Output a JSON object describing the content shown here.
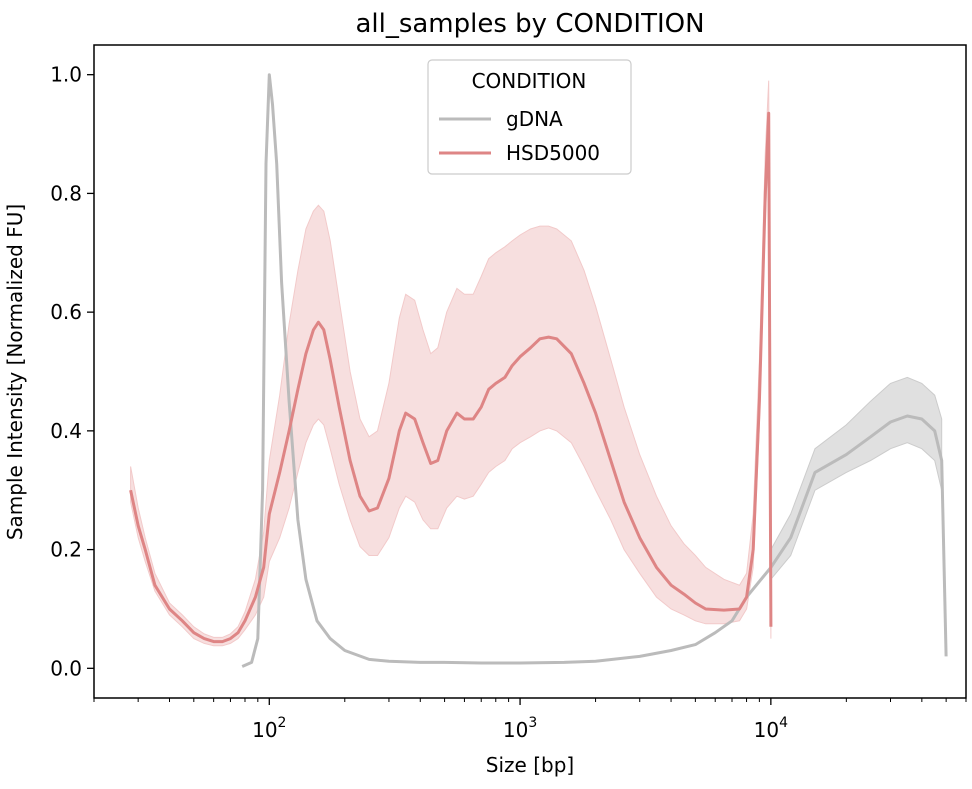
{
  "chart_data": {
    "type": "line",
    "title": "all_samples by CONDITION",
    "xlabel": "Size [bp]",
    "ylabel": "Sample Intensity [Normalized FU]",
    "x_scale": "log",
    "xlim": [
      20,
      60000
    ],
    "ylim": [
      -0.05,
      1.05
    ],
    "x_ticks": [
      {
        "value": 100,
        "base": "10",
        "exp": "2"
      },
      {
        "value": 1000,
        "base": "10",
        "exp": "3"
      },
      {
        "value": 10000,
        "base": "10",
        "exp": "4"
      }
    ],
    "y_ticks": [
      {
        "value": 0.0,
        "label": "0.0"
      },
      {
        "value": 0.2,
        "label": "0.2"
      },
      {
        "value": 0.4,
        "label": "0.4"
      },
      {
        "value": 0.6,
        "label": "0.6"
      },
      {
        "value": 0.8,
        "label": "0.8"
      },
      {
        "value": 1.0,
        "label": "1.0"
      }
    ],
    "grid": false,
    "legend": {
      "title": "CONDITION",
      "placement": "top-center"
    },
    "series": [
      {
        "name": "gDNA",
        "color": "#bbbbbb",
        "band_color": "#cccccc",
        "points": [
          [
            78,
            0.003
          ],
          [
            85,
            0.01
          ],
          [
            90,
            0.05
          ],
          [
            94,
            0.3
          ],
          [
            97,
            0.85
          ],
          [
            100,
            1.0
          ],
          [
            103,
            0.95
          ],
          [
            107,
            0.85
          ],
          [
            112,
            0.65
          ],
          [
            120,
            0.45
          ],
          [
            130,
            0.25
          ],
          [
            140,
            0.15
          ],
          [
            155,
            0.08
          ],
          [
            175,
            0.05
          ],
          [
            200,
            0.03
          ],
          [
            250,
            0.015
          ],
          [
            300,
            0.012
          ],
          [
            400,
            0.01
          ],
          [
            500,
            0.01
          ],
          [
            700,
            0.009
          ],
          [
            1000,
            0.009
          ],
          [
            1500,
            0.01
          ],
          [
            2000,
            0.012
          ],
          [
            3000,
            0.02
          ],
          [
            4000,
            0.03
          ],
          [
            5000,
            0.04
          ],
          [
            6000,
            0.06
          ],
          [
            7000,
            0.08
          ],
          [
            8000,
            0.12
          ],
          [
            10000,
            0.17
          ],
          [
            12000,
            0.22
          ],
          [
            15000,
            0.33
          ],
          [
            20000,
            0.36
          ],
          [
            25000,
            0.39
          ],
          [
            30000,
            0.415
          ],
          [
            35000,
            0.425
          ],
          [
            40000,
            0.42
          ],
          [
            45000,
            0.4
          ],
          [
            48000,
            0.35
          ],
          [
            50000,
            0.02
          ]
        ],
        "band": [
          [
            10000,
            0.15,
            0.2
          ],
          [
            12000,
            0.19,
            0.26
          ],
          [
            15000,
            0.3,
            0.37
          ],
          [
            20000,
            0.33,
            0.41
          ],
          [
            25000,
            0.35,
            0.45
          ],
          [
            30000,
            0.37,
            0.48
          ],
          [
            35000,
            0.38,
            0.49
          ],
          [
            40000,
            0.37,
            0.48
          ],
          [
            45000,
            0.35,
            0.46
          ],
          [
            48000,
            0.3,
            0.42
          ]
        ]
      },
      {
        "name": "HSD5000",
        "color": "#de8585",
        "band_color": "#f2caca",
        "points": [
          [
            28,
            0.3
          ],
          [
            30,
            0.24
          ],
          [
            32,
            0.2
          ],
          [
            35,
            0.14
          ],
          [
            40,
            0.1
          ],
          [
            45,
            0.08
          ],
          [
            50,
            0.06
          ],
          [
            55,
            0.05
          ],
          [
            60,
            0.045
          ],
          [
            65,
            0.045
          ],
          [
            70,
            0.05
          ],
          [
            75,
            0.06
          ],
          [
            80,
            0.08
          ],
          [
            88,
            0.12
          ],
          [
            95,
            0.17
          ],
          [
            100,
            0.26
          ],
          [
            110,
            0.33
          ],
          [
            120,
            0.4
          ],
          [
            130,
            0.47
          ],
          [
            140,
            0.53
          ],
          [
            150,
            0.57
          ],
          [
            157,
            0.583
          ],
          [
            165,
            0.57
          ],
          [
            175,
            0.52
          ],
          [
            190,
            0.44
          ],
          [
            210,
            0.35
          ],
          [
            230,
            0.29
          ],
          [
            250,
            0.265
          ],
          [
            270,
            0.27
          ],
          [
            300,
            0.32
          ],
          [
            330,
            0.4
          ],
          [
            350,
            0.43
          ],
          [
            380,
            0.42
          ],
          [
            410,
            0.38
          ],
          [
            440,
            0.345
          ],
          [
            470,
            0.35
          ],
          [
            510,
            0.4
          ],
          [
            560,
            0.43
          ],
          [
            600,
            0.42
          ],
          [
            650,
            0.42
          ],
          [
            700,
            0.44
          ],
          [
            750,
            0.47
          ],
          [
            800,
            0.48
          ],
          [
            870,
            0.49
          ],
          [
            930,
            0.51
          ],
          [
            1000,
            0.525
          ],
          [
            1100,
            0.54
          ],
          [
            1200,
            0.555
          ],
          [
            1300,
            0.558
          ],
          [
            1400,
            0.555
          ],
          [
            1600,
            0.53
          ],
          [
            1800,
            0.48
          ],
          [
            2000,
            0.43
          ],
          [
            2300,
            0.35
          ],
          [
            2600,
            0.28
          ],
          [
            3000,
            0.22
          ],
          [
            3500,
            0.17
          ],
          [
            4000,
            0.14
          ],
          [
            4500,
            0.125
          ],
          [
            5000,
            0.11
          ],
          [
            5500,
            0.1
          ],
          [
            6500,
            0.098
          ],
          [
            7500,
            0.1
          ],
          [
            8000,
            0.12
          ],
          [
            8500,
            0.2
          ],
          [
            9000,
            0.45
          ],
          [
            9500,
            0.8
          ],
          [
            9800,
            0.935
          ],
          [
            9900,
            0.5
          ],
          [
            10000,
            0.07
          ]
        ],
        "band": [
          [
            28,
            0.28,
            0.34
          ],
          [
            30,
            0.22,
            0.27
          ],
          [
            32,
            0.18,
            0.22
          ],
          [
            35,
            0.13,
            0.16
          ],
          [
            40,
            0.09,
            0.11
          ],
          [
            45,
            0.07,
            0.09
          ],
          [
            50,
            0.05,
            0.07
          ],
          [
            55,
            0.042,
            0.058
          ],
          [
            60,
            0.038,
            0.052
          ],
          [
            65,
            0.038,
            0.052
          ],
          [
            70,
            0.042,
            0.058
          ],
          [
            75,
            0.05,
            0.07
          ],
          [
            80,
            0.065,
            0.095
          ],
          [
            88,
            0.09,
            0.15
          ],
          [
            95,
            0.12,
            0.23
          ],
          [
            100,
            0.18,
            0.35
          ],
          [
            110,
            0.22,
            0.46
          ],
          [
            120,
            0.27,
            0.58
          ],
          [
            130,
            0.33,
            0.67
          ],
          [
            140,
            0.38,
            0.74
          ],
          [
            150,
            0.41,
            0.77
          ],
          [
            157,
            0.42,
            0.78
          ],
          [
            165,
            0.41,
            0.77
          ],
          [
            175,
            0.37,
            0.72
          ],
          [
            190,
            0.31,
            0.62
          ],
          [
            210,
            0.25,
            0.5
          ],
          [
            230,
            0.205,
            0.42
          ],
          [
            250,
            0.19,
            0.39
          ],
          [
            270,
            0.19,
            0.4
          ],
          [
            300,
            0.22,
            0.48
          ],
          [
            330,
            0.27,
            0.59
          ],
          [
            350,
            0.29,
            0.63
          ],
          [
            380,
            0.28,
            0.62
          ],
          [
            410,
            0.25,
            0.57
          ],
          [
            440,
            0.235,
            0.53
          ],
          [
            470,
            0.235,
            0.54
          ],
          [
            510,
            0.27,
            0.6
          ],
          [
            560,
            0.29,
            0.64
          ],
          [
            600,
            0.285,
            0.63
          ],
          [
            650,
            0.29,
            0.63
          ],
          [
            700,
            0.31,
            0.66
          ],
          [
            750,
            0.33,
            0.69
          ],
          [
            800,
            0.34,
            0.7
          ],
          [
            870,
            0.35,
            0.71
          ],
          [
            930,
            0.37,
            0.72
          ],
          [
            1000,
            0.38,
            0.73
          ],
          [
            1100,
            0.39,
            0.74
          ],
          [
            1200,
            0.4,
            0.745
          ],
          [
            1300,
            0.405,
            0.745
          ],
          [
            1400,
            0.4,
            0.74
          ],
          [
            1600,
            0.38,
            0.72
          ],
          [
            1800,
            0.34,
            0.67
          ],
          [
            2000,
            0.3,
            0.61
          ],
          [
            2300,
            0.25,
            0.52
          ],
          [
            2600,
            0.2,
            0.44
          ],
          [
            3000,
            0.16,
            0.36
          ],
          [
            3500,
            0.12,
            0.29
          ],
          [
            4000,
            0.1,
            0.24
          ],
          [
            4500,
            0.09,
            0.21
          ],
          [
            5000,
            0.08,
            0.19
          ],
          [
            5500,
            0.075,
            0.17
          ],
          [
            6500,
            0.075,
            0.15
          ],
          [
            7500,
            0.08,
            0.14
          ],
          [
            8000,
            0.1,
            0.16
          ],
          [
            8500,
            0.17,
            0.26
          ],
          [
            9000,
            0.41,
            0.52
          ],
          [
            9500,
            0.76,
            0.87
          ],
          [
            9800,
            0.88,
            0.99
          ],
          [
            9900,
            0.45,
            0.56
          ],
          [
            10000,
            0.05,
            0.1
          ]
        ]
      }
    ]
  }
}
